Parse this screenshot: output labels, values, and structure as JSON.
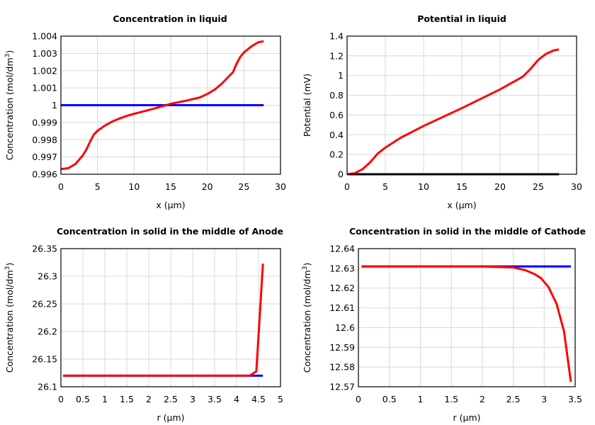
{
  "chart_data": [
    {
      "type": "line",
      "title": "Concentration in liquid",
      "xlabel": "x (µm)",
      "ylabel": "Concentration (mol/dm",
      "ylabel_sup": "3",
      "ylabel_end": ")",
      "xlim": [
        0,
        30
      ],
      "ylim": [
        0.996,
        1.004
      ],
      "xticks": [
        "0",
        "5",
        "10",
        "15",
        "20",
        "25",
        "30"
      ],
      "xtick_values": [
        0,
        5,
        10,
        15,
        20,
        25,
        30
      ],
      "yticks": [
        "0.996",
        "0.997",
        "0.998",
        "0.999",
        "1",
        "1.001",
        "1.002",
        "1.003",
        "1.004"
      ],
      "ytick_values": [
        0.996,
        0.997,
        0.998,
        0.999,
        1,
        1.001,
        1.002,
        1.003,
        1.004
      ],
      "grid": true,
      "series": [
        {
          "color": "#0000ff",
          "x": [
            0,
            27.7
          ],
          "y": [
            1.0,
            1.0
          ]
        },
        {
          "color": "#ff0000",
          "x": [
            0,
            1,
            2,
            3,
            3.5,
            4,
            4.5,
            5,
            6,
            7,
            8,
            9,
            10,
            12,
            14,
            15,
            17,
            19,
            20,
            21,
            22,
            23,
            23.5,
            24,
            24.5,
            25,
            26,
            27,
            27.7
          ],
          "y": [
            0.9963,
            0.99635,
            0.9966,
            0.9971,
            0.99745,
            0.9979,
            0.9983,
            0.99852,
            0.99882,
            0.99905,
            0.99923,
            0.99938,
            0.9995,
            0.99972,
            0.99995,
            1.00008,
            1.00025,
            1.00045,
            1.00065,
            1.0009,
            1.00125,
            1.0017,
            1.0019,
            1.0024,
            1.0028,
            1.00305,
            1.0034,
            1.00365,
            1.0037
          ]
        }
      ]
    },
    {
      "type": "line",
      "title": "Potential in liquid",
      "xlabel": "x (µm)",
      "ylabel": "Potential (mV)",
      "ylabel_sup": "",
      "ylabel_end": "",
      "xlim": [
        0,
        30
      ],
      "ylim": [
        0,
        1.4
      ],
      "xticks": [
        "0",
        "5",
        "10",
        "15",
        "20",
        "25",
        "30"
      ],
      "xtick_values": [
        0,
        5,
        10,
        15,
        20,
        25,
        30
      ],
      "yticks": [
        "0",
        "0.2",
        "0.4",
        "0.6",
        "0.8",
        "1",
        "1.2",
        "1.4"
      ],
      "ytick_values": [
        0,
        0.2,
        0.4,
        0.6,
        0.8,
        1,
        1.2,
        1.4
      ],
      "grid": true,
      "series": [
        {
          "color": "#000000",
          "x": [
            0,
            27.7
          ],
          "y": [
            0,
            0
          ]
        },
        {
          "color": "#ff0000",
          "x": [
            0,
            1,
            2,
            3,
            4,
            5,
            7,
            10,
            15,
            20,
            23,
            24,
            25,
            26,
            27,
            27.7
          ],
          "y": [
            0,
            0.01,
            0.05,
            0.12,
            0.21,
            0.27,
            0.37,
            0.49,
            0.67,
            0.86,
            0.99,
            1.07,
            1.16,
            1.22,
            1.255,
            1.265
          ]
        }
      ]
    },
    {
      "type": "line",
      "title": "Concentration in solid in the middle of Anode",
      "xlabel": "r (µm)",
      "ylabel": "Concentration (mol/dm",
      "ylabel_sup": "3",
      "ylabel_end": ")",
      "xlim": [
        0,
        5
      ],
      "ylim": [
        26.1,
        26.35
      ],
      "xticks": [
        "0",
        "0.5",
        "1",
        "1.5",
        "2",
        "2.5",
        "3",
        "3.5",
        "4",
        "4.5",
        "5"
      ],
      "xtick_values": [
        0,
        0.5,
        1,
        1.5,
        2,
        2.5,
        3,
        3.5,
        4,
        4.5,
        5
      ],
      "yticks": [
        "26.1",
        "26.15",
        "26.2",
        "26.25",
        "26.3",
        "26.35"
      ],
      "ytick_values": [
        26.1,
        26.15,
        26.2,
        26.25,
        26.3,
        26.35
      ],
      "grid": true,
      "series": [
        {
          "color": "#0000ff",
          "x": [
            0.05,
            4.6
          ],
          "y": [
            26.12,
            26.12
          ]
        },
        {
          "color": "#ff0000",
          "x": [
            0.05,
            4.3,
            4.45,
            4.6
          ],
          "y": [
            26.12,
            26.12,
            26.128,
            26.323
          ]
        }
      ]
    },
    {
      "type": "line",
      "title": "Concentration in solid in the middle of Cathode",
      "xlabel": "r (µm)",
      "ylabel": "Concentration (mol/dm",
      "ylabel_sup": "3",
      "ylabel_end": ")",
      "xlim": [
        0,
        3.5
      ],
      "ylim": [
        12.57,
        12.64
      ],
      "xticks": [
        "0",
        "0.5",
        "1",
        "1.5",
        "2",
        "2.5",
        "3",
        "3.5"
      ],
      "xtick_values": [
        0,
        0.5,
        1,
        1.5,
        2,
        2.5,
        3,
        3.5
      ],
      "yticks": [
        "12.57",
        "12.58",
        "12.59",
        "12.6",
        "12.61",
        "12.62",
        "12.63",
        "12.64"
      ],
      "ytick_values": [
        12.57,
        12.58,
        12.59,
        12.6,
        12.61,
        12.62,
        12.63,
        12.64
      ],
      "grid": true,
      "series": [
        {
          "color": "#0000ff",
          "x": [
            0.05,
            3.43
          ],
          "y": [
            12.631,
            12.631
          ]
        },
        {
          "color": "#ff0000",
          "x": [
            0.05,
            2,
            2.5,
            2.7,
            2.85,
            2.95,
            3.07,
            3.2,
            3.32,
            3.43
          ],
          "y": [
            12.631,
            12.631,
            12.6305,
            12.629,
            12.627,
            12.625,
            12.6205,
            12.612,
            12.598,
            12.5725
          ]
        }
      ]
    }
  ]
}
